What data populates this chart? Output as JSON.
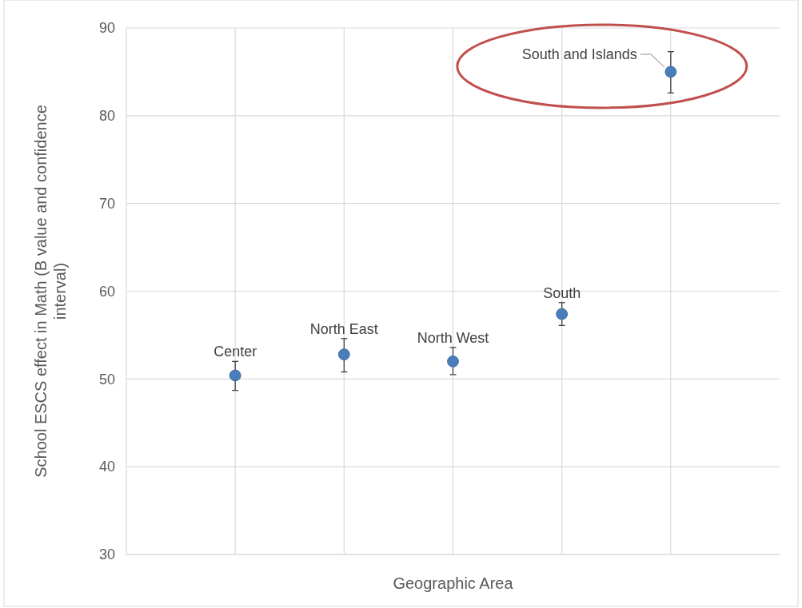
{
  "chart_data": {
    "type": "scatter",
    "xlabel": "Geographic Area",
    "ylabel": "School ESCS effect in Math (B value and confidence interval)",
    "categories": [
      null,
      null,
      null,
      null,
      null
    ],
    "series": [
      {
        "name": "Center",
        "color": "#4a7ebb",
        "values": [
          50.4,
          null,
          null,
          null,
          null
        ],
        "errors": [
          [
            48.7,
            52.0
          ],
          null,
          null,
          null,
          null
        ]
      },
      {
        "name": "North East",
        "color": "#4a7ebb",
        "values": [
          null,
          52.8,
          null,
          null,
          null
        ],
        "errors": [
          null,
          [
            50.8,
            54.6
          ],
          null,
          null,
          null
        ]
      },
      {
        "name": "North West",
        "color": "#4a7ebb",
        "values": [
          null,
          null,
          52.0,
          null,
          null
        ],
        "errors": [
          null,
          null,
          [
            50.5,
            53.6
          ],
          null,
          null
        ]
      },
      {
        "name": "South",
        "color": "#4a7ebb",
        "values": [
          null,
          null,
          null,
          57.4,
          null
        ],
        "errors": [
          null,
          null,
          null,
          [
            56.1,
            58.7
          ],
          null
        ]
      },
      {
        "name": "South and Islands",
        "color": "#4a7ebb",
        "values": [
          null,
          null,
          null,
          null,
          85.0
        ],
        "errors": [
          null,
          null,
          null,
          null,
          [
            82.6,
            87.3
          ]
        ]
      }
    ],
    "ylim": [
      30,
      90
    ],
    "yticks": [
      30,
      40,
      50,
      60,
      70,
      80,
      90
    ],
    "grid": true,
    "marker": "circle"
  }
}
